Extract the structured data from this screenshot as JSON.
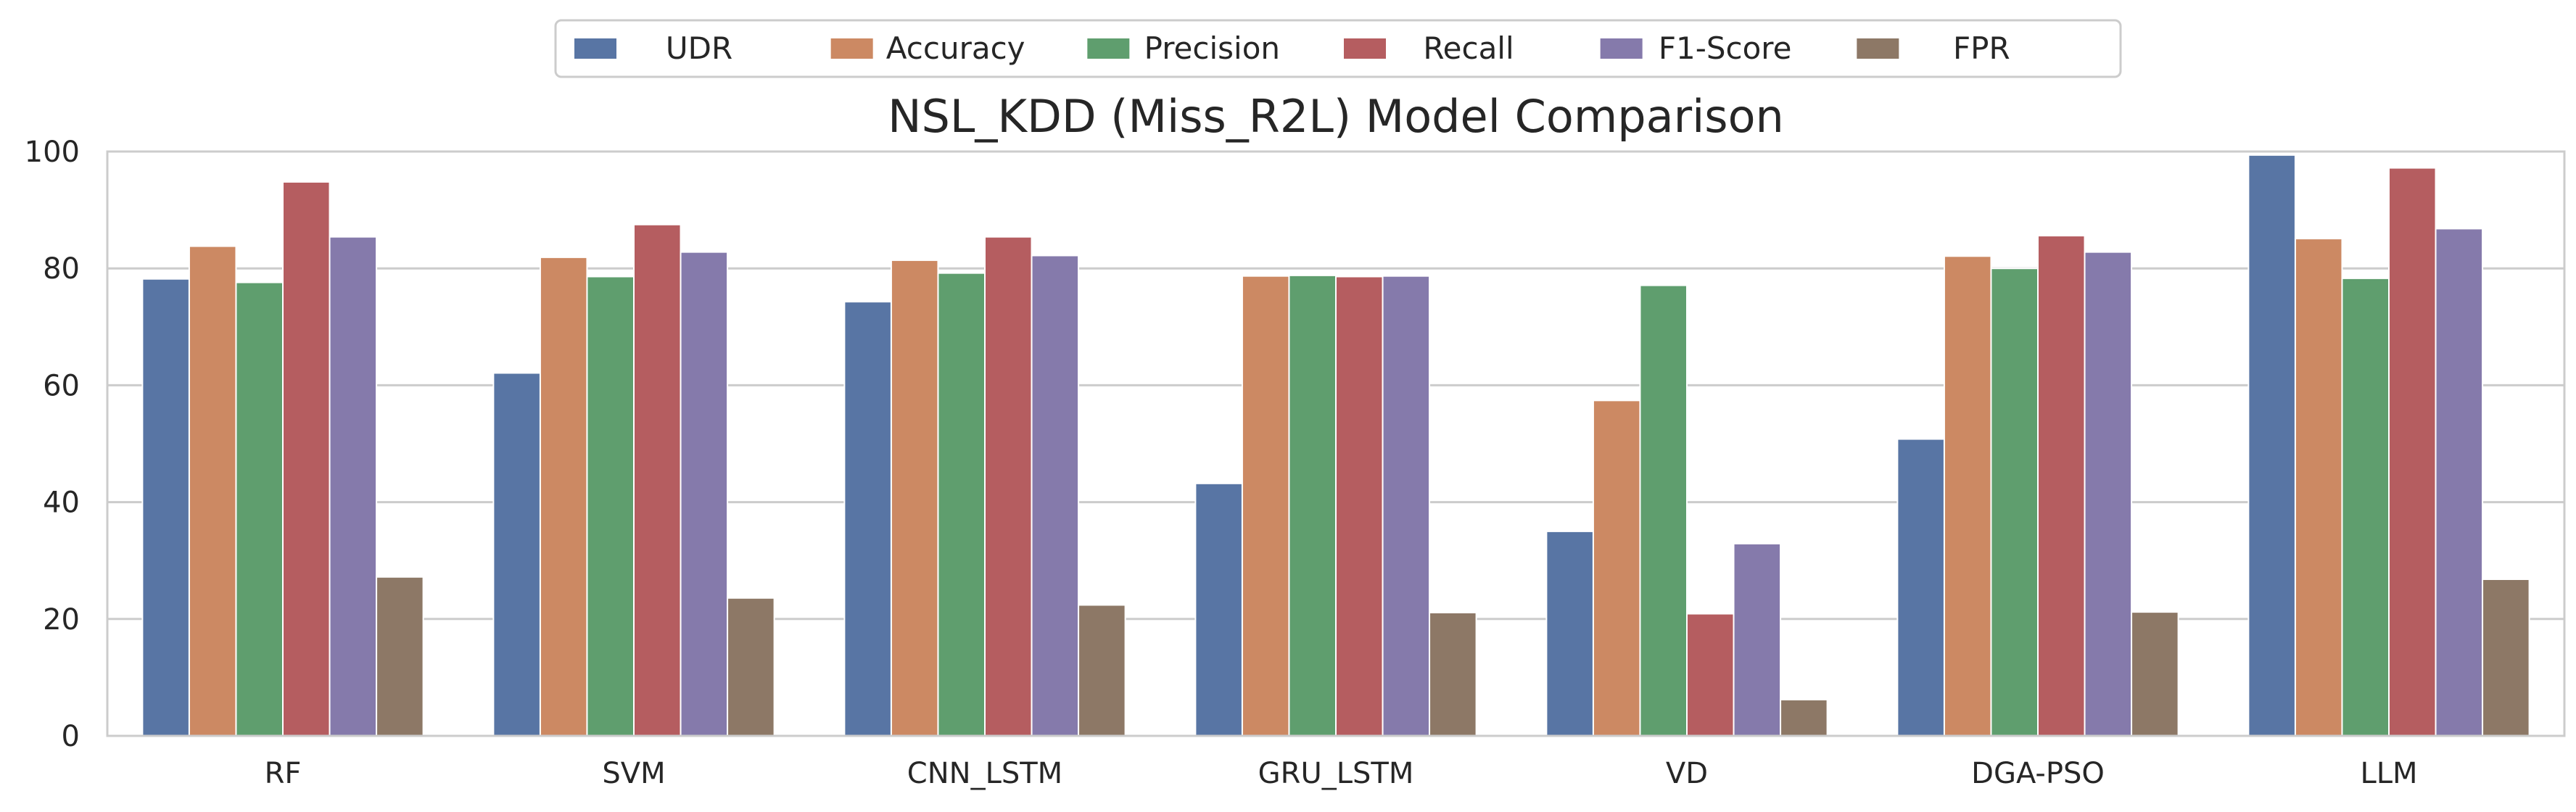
{
  "chart_data": {
    "type": "bar",
    "title": "NSL_KDD (Miss_R2L) Model Comparison",
    "xlabel": "",
    "ylabel": "",
    "categories": [
      "RF",
      "SVM",
      "CNN_LSTM",
      "GRU_LSTM",
      "VD",
      "DGA-PSO",
      "LLM"
    ],
    "series": [
      {
        "name": "UDR",
        "color": "#5875a4",
        "values": [
          78.2,
          62.1,
          74.3,
          43.2,
          35.0,
          50.8,
          99.4
        ]
      },
      {
        "name": "Accuracy",
        "color": "#cc8963",
        "values": [
          83.8,
          81.9,
          81.4,
          78.7,
          57.4,
          82.1,
          85.1
        ]
      },
      {
        "name": "Precision",
        "color": "#5f9e6e",
        "values": [
          77.6,
          78.6,
          79.2,
          78.8,
          77.1,
          80.0,
          78.3
        ]
      },
      {
        "name": "Recall",
        "color": "#b55d60",
        "values": [
          94.8,
          87.5,
          85.4,
          78.6,
          20.9,
          85.6,
          97.2
        ]
      },
      {
        "name": "F1-Score",
        "color": "#857aab",
        "values": [
          85.4,
          82.8,
          82.2,
          78.7,
          32.9,
          82.8,
          86.8
        ]
      },
      {
        "name": "FPR",
        "color": "#8d7866",
        "values": [
          27.2,
          23.6,
          22.4,
          21.1,
          6.2,
          21.2,
          26.8
        ]
      }
    ],
    "ylim": [
      0,
      100
    ],
    "yticks": [
      0,
      20,
      40,
      60,
      80,
      100
    ],
    "grid": "horizontal",
    "legend_position": "top-center"
  }
}
